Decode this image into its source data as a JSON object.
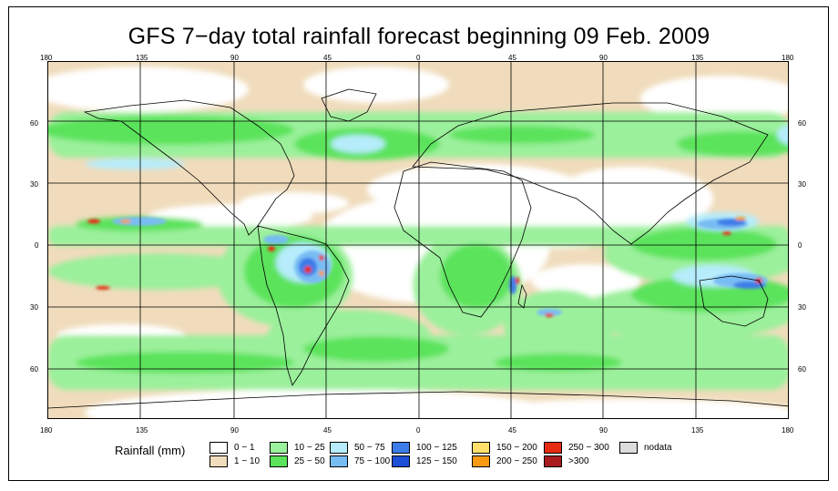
{
  "title": "GFS 7−day total rainfall forecast beginning 09 Feb. 2009",
  "longitude_labels": [
    "180",
    "135",
    "90",
    "45",
    "0",
    "45",
    "90",
    "135",
    "180"
  ],
  "latitude_labels": [
    "60",
    "30",
    "0",
    "30",
    "60"
  ],
  "legend": {
    "title": "Rainfall (mm)",
    "items": [
      {
        "label": "0 − 1",
        "color": "#ffffff"
      },
      {
        "label": "1 − 10",
        "color": "#f0dcbc"
      },
      {
        "label": "10 − 25",
        "color": "#9bf09b"
      },
      {
        "label": "25 − 50",
        "color": "#5be35b"
      },
      {
        "label": "50 − 75",
        "color": "#b6ecfb"
      },
      {
        "label": "75 − 100",
        "color": "#78bcf4"
      },
      {
        "label": "100 − 125",
        "color": "#3c7ce8"
      },
      {
        "label": "125 − 150",
        "color": "#1c4ed6"
      },
      {
        "label": "150 − 200",
        "color": "#fde06a"
      },
      {
        "label": "200 − 250",
        "color": "#f89b12"
      },
      {
        "label": "250 − 300",
        "color": "#e52c12"
      },
      {
        "label": ">300",
        "color": "#a81c20"
      },
      {
        "label": "nodata",
        "color": "#dcdcdc"
      }
    ]
  }
}
